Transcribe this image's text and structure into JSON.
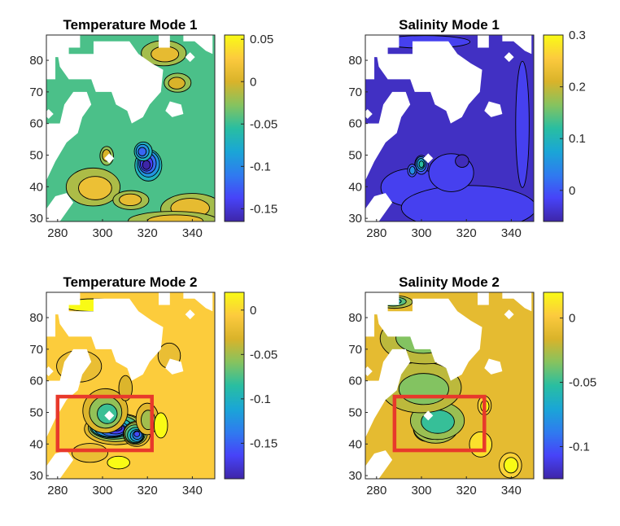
{
  "figure": {
    "colormap": [
      "#3e26a8",
      "#4743f8",
      "#2f7bef",
      "#1aa6d6",
      "#29bea1",
      "#86c35f",
      "#d9b32a",
      "#fcca3e",
      "#f9fb15"
    ],
    "box_color": "#e8392b",
    "missing_color": "#ffffff",
    "contour_color": "#000000"
  },
  "chart_data": [
    {
      "type": "heatmap",
      "title": "Temperature Mode 1",
      "xlim": [
        275,
        350
      ],
      "ylim": [
        29,
        88
      ],
      "x_ticks": [
        "280",
        "300",
        "320",
        "340"
      ],
      "x_tick_values": [
        280,
        300,
        320,
        340
      ],
      "y_ticks": [
        "30",
        "40",
        "50",
        "60",
        "70",
        "80"
      ],
      "y_tick_values": [
        30,
        40,
        50,
        60,
        70,
        80
      ],
      "colorbar": {
        "range": [
          -0.165,
          0.055
        ],
        "ticks": [
          "0.05",
          "0",
          "-0.05",
          "-0.1",
          "-0.15"
        ],
        "tick_values": [
          0.05,
          0,
          -0.05,
          -0.1,
          -0.15
        ]
      },
      "background_value": -0.045,
      "features": [
        {
          "lon": 320,
          "lat": 47,
          "value": -0.165,
          "rx": 6,
          "ry": 5
        },
        {
          "lon": 318,
          "lat": 51,
          "value": -0.12,
          "rx": 4,
          "ry": 3
        },
        {
          "lon": 292,
          "lat": 42,
          "value": 0.05,
          "rx": 5,
          "ry": 3
        },
        {
          "lon": 296,
          "lat": 40,
          "value": 0.015,
          "rx": 12,
          "ry": 6
        },
        {
          "lon": 312,
          "lat": 36,
          "value": 0.01,
          "rx": 8,
          "ry": 3
        },
        {
          "lon": 340,
          "lat": 33,
          "value": 0.01,
          "rx": 14,
          "ry": 5
        },
        {
          "lon": 333,
          "lat": 29,
          "value": 0.01,
          "rx": 20,
          "ry": 3
        },
        {
          "lon": 327,
          "lat": 82,
          "value": 0.01,
          "rx": 10,
          "ry": 4
        },
        {
          "lon": 333,
          "lat": 73,
          "value": 0.0,
          "rx": 6,
          "ry": 3
        },
        {
          "lon": 302,
          "lat": 50,
          "value": 0.0,
          "rx": 3,
          "ry": 3
        }
      ],
      "box": null
    },
    {
      "type": "heatmap",
      "title": "Salinity Mode 1",
      "xlim": [
        275,
        350
      ],
      "ylim": [
        29,
        88
      ],
      "x_ticks": [
        "280",
        "300",
        "320",
        "340"
      ],
      "x_tick_values": [
        280,
        300,
        320,
        340
      ],
      "y_ticks": [
        "30",
        "40",
        "50",
        "60",
        "70",
        "80"
      ],
      "y_tick_values": [
        30,
        40,
        50,
        60,
        70,
        80
      ],
      "colorbar": {
        "range": [
          -0.06,
          0.3
        ],
        "ticks": [
          "0.3",
          "0.2",
          "0.1",
          "0"
        ],
        "tick_values": [
          0.3,
          0.2,
          0.1,
          0
        ]
      },
      "background_value": -0.045,
      "features": [
        {
          "lon": 295,
          "lat": 40,
          "value": -0.02,
          "rx": 14,
          "ry": 6
        },
        {
          "lon": 320,
          "lat": 33,
          "value": -0.02,
          "rx": 30,
          "ry": 7
        },
        {
          "lon": 314,
          "lat": 44,
          "value": -0.02,
          "rx": 10,
          "ry": 6
        },
        {
          "lon": 345,
          "lat": 60,
          "value": -0.02,
          "rx": 3,
          "ry": 20
        },
        {
          "lon": 300,
          "lat": 86,
          "value": -0.02,
          "rx": 20,
          "ry": 2
        },
        {
          "lon": 300,
          "lat": 47,
          "value": 0.12,
          "rx": 3,
          "ry": 3
        },
        {
          "lon": 296,
          "lat": 45,
          "value": 0.05,
          "rx": 2,
          "ry": 2
        },
        {
          "lon": 318,
          "lat": 48,
          "value": -0.05,
          "rx": 3,
          "ry": 2
        }
      ],
      "box": null
    },
    {
      "type": "heatmap",
      "title": "Temperature Mode 2",
      "xlim": [
        275,
        350
      ],
      "ylim": [
        29,
        88
      ],
      "x_ticks": [
        "280",
        "300",
        "320",
        "340"
      ],
      "x_tick_values": [
        280,
        300,
        320,
        340
      ],
      "y_ticks": [
        "30",
        "40",
        "50",
        "60",
        "70",
        "80"
      ],
      "y_tick_values": [
        30,
        40,
        50,
        60,
        70,
        80
      ],
      "colorbar": {
        "range": [
          -0.19,
          0.02
        ],
        "ticks": [
          "0",
          "-0.05",
          "-0.1",
          "-0.15"
        ],
        "tick_values": [
          0,
          -0.05,
          -0.1,
          -0.15
        ]
      },
      "background_value": -0.005,
      "features": [
        {
          "lon": 305,
          "lat": 45,
          "value": -0.19,
          "rx": 14,
          "ry": 5
        },
        {
          "lon": 315,
          "lat": 43,
          "value": -0.16,
          "rx": 6,
          "ry": 4
        },
        {
          "lon": 302,
          "lat": 50,
          "value": -0.08,
          "rx": 10,
          "ry": 7
        },
        {
          "lon": 320,
          "lat": 48,
          "value": -0.05,
          "rx": 5,
          "ry": 5
        },
        {
          "lon": 310,
          "lat": 58,
          "value": -0.03,
          "rx": 3,
          "ry": 4
        },
        {
          "lon": 326,
          "lat": 46,
          "value": 0.02,
          "rx": 3,
          "ry": 4
        },
        {
          "lon": 295,
          "lat": 37,
          "value": -0.02,
          "rx": 8,
          "ry": 3
        },
        {
          "lon": 307,
          "lat": 34,
          "value": 0.02,
          "rx": 5,
          "ry": 2
        },
        {
          "lon": 295,
          "lat": 84,
          "value": 0.02,
          "rx": 14,
          "ry": 2
        },
        {
          "lon": 290,
          "lat": 65,
          "value": -0.02,
          "rx": 10,
          "ry": 5
        },
        {
          "lon": 330,
          "lat": 68,
          "value": -0.02,
          "rx": 5,
          "ry": 4
        }
      ],
      "box": {
        "lon": [
          280,
          322
        ],
        "lat": [
          38,
          55
        ]
      }
    },
    {
      "type": "heatmap",
      "title": "Salinity Mode 2",
      "xlim": [
        275,
        350
      ],
      "ylim": [
        29,
        88
      ],
      "x_ticks": [
        "280",
        "300",
        "320",
        "340"
      ],
      "x_tick_values": [
        280,
        300,
        320,
        340
      ],
      "y_ticks": [
        "30",
        "40",
        "50",
        "60",
        "70",
        "80"
      ],
      "y_tick_values": [
        30,
        40,
        50,
        60,
        70,
        80
      ],
      "colorbar": {
        "range": [
          -0.125,
          0.02
        ],
        "ticks": [
          "0",
          "-0.05",
          "-0.1"
        ],
        "tick_values": [
          0,
          -0.05,
          -0.1
        ]
      },
      "background_value": -0.01,
      "features": [
        {
          "lon": 302,
          "lat": 45,
          "value": -0.125,
          "rx": 6,
          "ry": 4
        },
        {
          "lon": 306,
          "lat": 45,
          "value": -0.08,
          "rx": 10,
          "ry": 5
        },
        {
          "lon": 308,
          "lat": 47,
          "value": -0.05,
          "rx": 12,
          "ry": 6
        },
        {
          "lon": 300,
          "lat": 58,
          "value": -0.035,
          "rx": 18,
          "ry": 8
        },
        {
          "lon": 300,
          "lat": 74,
          "value": -0.035,
          "rx": 20,
          "ry": 8
        },
        {
          "lon": 288,
          "lat": 85,
          "value": -0.06,
          "rx": 8,
          "ry": 2
        },
        {
          "lon": 340,
          "lat": 33,
          "value": 0.02,
          "rx": 5,
          "ry": 4
        },
        {
          "lon": 328,
          "lat": 52,
          "value": 0.02,
          "rx": 3,
          "ry": 3
        },
        {
          "lon": 326,
          "lat": 40,
          "value": 0.01,
          "rx": 5,
          "ry": 4
        }
      ],
      "box": {
        "lon": [
          288,
          328
        ],
        "lat": [
          38,
          55
        ]
      }
    }
  ]
}
